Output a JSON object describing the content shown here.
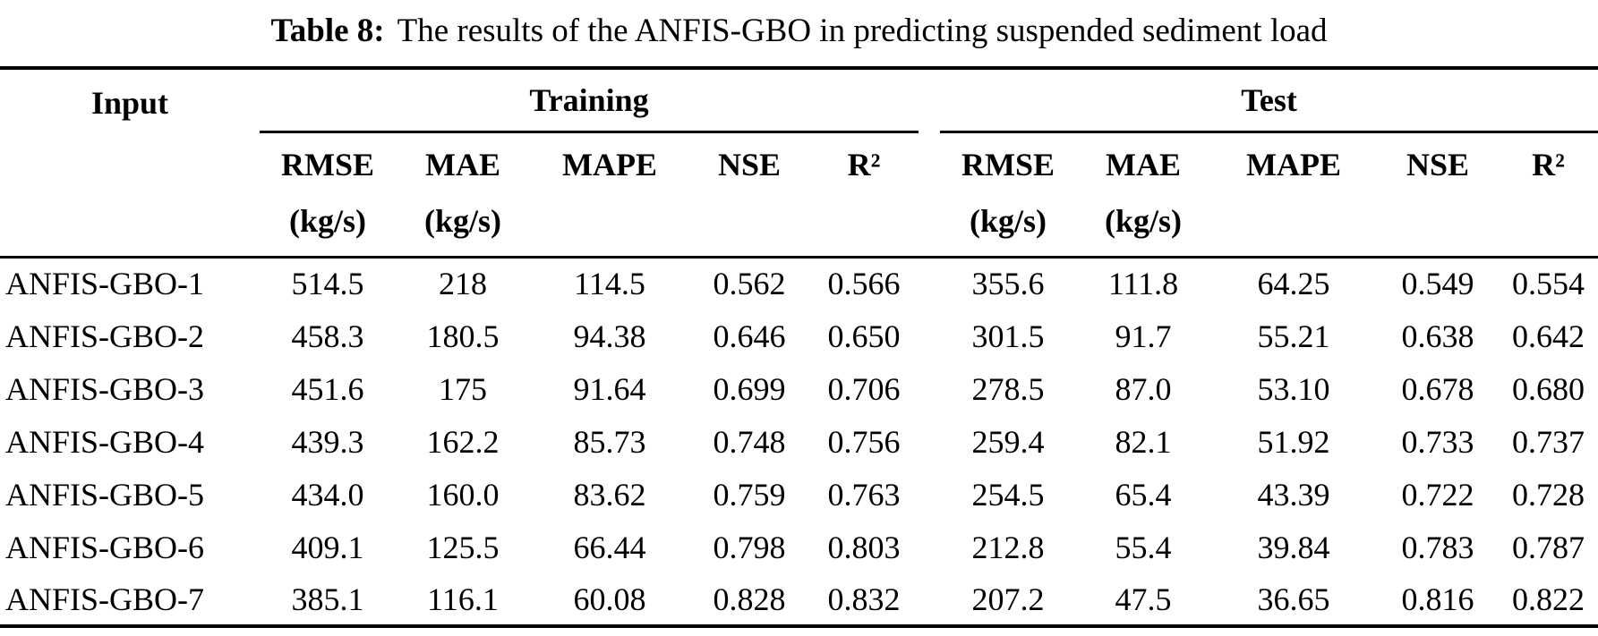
{
  "caption": {
    "label": "Table 8:",
    "text": "The results of the ANFIS-GBO in predicting suspended sediment load"
  },
  "table": {
    "input_header": "Input",
    "groups": [
      {
        "label": "Training"
      },
      {
        "label": "Test"
      }
    ],
    "metric_headers": [
      "RMSE",
      "MAE",
      "MAPE",
      "NSE",
      "R²"
    ],
    "units": [
      "(kg/s)",
      "(kg/s)",
      "",
      "",
      ""
    ],
    "rows": [
      {
        "input": "ANFIS-GBO-1",
        "training": [
          "514.5",
          "218",
          "114.5",
          "0.562",
          "0.566"
        ],
        "test": [
          "355.6",
          "111.8",
          "64.25",
          "0.549",
          "0.554"
        ]
      },
      {
        "input": "ANFIS-GBO-2",
        "training": [
          "458.3",
          "180.5",
          "94.38",
          "0.646",
          "0.650"
        ],
        "test": [
          "301.5",
          "91.7",
          "55.21",
          "0.638",
          "0.642"
        ]
      },
      {
        "input": "ANFIS-GBO-3",
        "training": [
          "451.6",
          "175",
          "91.64",
          "0.699",
          "0.706"
        ],
        "test": [
          "278.5",
          "87.0",
          "53.10",
          "0.678",
          "0.680"
        ]
      },
      {
        "input": "ANFIS-GBO-4",
        "training": [
          "439.3",
          "162.2",
          "85.73",
          "0.748",
          "0.756"
        ],
        "test": [
          "259.4",
          "82.1",
          "51.92",
          "0.733",
          "0.737"
        ]
      },
      {
        "input": "ANFIS-GBO-5",
        "training": [
          "434.0",
          "160.0",
          "83.62",
          "0.759",
          "0.763"
        ],
        "test": [
          "254.5",
          "65.4",
          "43.39",
          "0.722",
          "0.728"
        ]
      },
      {
        "input": "ANFIS-GBO-6",
        "training": [
          "409.1",
          "125.5",
          "66.44",
          "0.798",
          "0.803"
        ],
        "test": [
          "212.8",
          "55.4",
          "39.84",
          "0.783",
          "0.787"
        ]
      },
      {
        "input": "ANFIS-GBO-7",
        "training": [
          "385.1",
          "116.1",
          "60.08",
          "0.828",
          "0.832"
        ],
        "test": [
          "207.2",
          "47.5",
          "36.65",
          "0.816",
          "0.822"
        ]
      }
    ]
  }
}
